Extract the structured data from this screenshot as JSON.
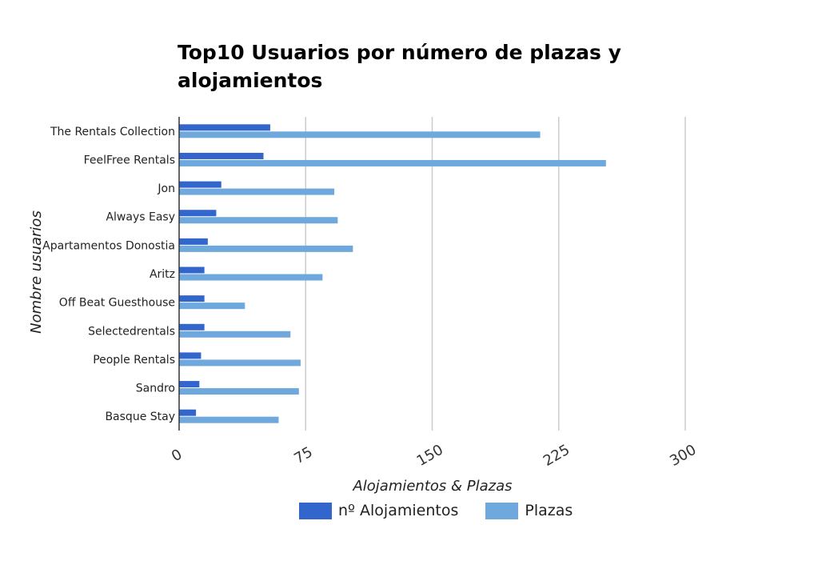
{
  "chart_data": {
    "type": "bar",
    "orientation": "horizontal",
    "title": "Top10 Usuarios por número de plazas y alojamientos",
    "xlabel": "Alojamientos & Plazas",
    "ylabel": "Nombre usuarios",
    "xlim": [
      0,
      300
    ],
    "xticks": [
      0,
      75,
      150,
      225,
      300
    ],
    "grid": true,
    "legend_position": "bottom",
    "categories": [
      "The Rentals Collection",
      "FeelFree Rentals",
      "Jon",
      "Always Easy",
      "Apartamentos Donostia",
      "Aritz",
      "Off Beat Guesthouse",
      "Selectedrentals",
      "People Rentals",
      "Sandro",
      "Basque Stay"
    ],
    "series": [
      {
        "name": "nº Alojamientos",
        "color": "#3366cc",
        "values": [
          54,
          50,
          25,
          22,
          17,
          15,
          15,
          15,
          13,
          12,
          10
        ]
      },
      {
        "name": "Plazas",
        "color": "#6fa8dc",
        "values": [
          214,
          253,
          92,
          94,
          103,
          85,
          39,
          66,
          72,
          71,
          59
        ]
      }
    ]
  }
}
